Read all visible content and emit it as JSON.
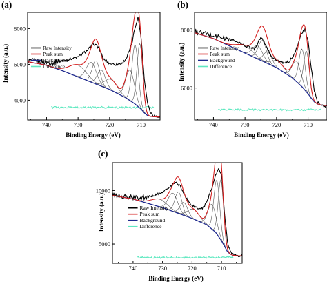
{
  "chart_data": [
    {
      "panel": "(a)",
      "type": "line",
      "xlabel": "Binding Energy (eV)",
      "ylabel": "Intensity (a.u.)",
      "xlim": [
        746,
        704
      ],
      "ylim": [
        2900,
        8900
      ],
      "x_reversed": true,
      "xticks": [
        740,
        730,
        720,
        710
      ],
      "yticks": [
        4000,
        6000,
        8000
      ],
      "legend_position": "left",
      "legend": [
        {
          "name": "Raw Intensity",
          "color": "#000000"
        },
        {
          "name": "Peak sum",
          "color": "#d42020"
        },
        {
          "name": "Background",
          "color": "#1f2a8f"
        },
        {
          "name": "Difference",
          "color": "#5fe8c0"
        }
      ],
      "raw_x": [
        746,
        742,
        738,
        734,
        730,
        727,
        725,
        723.5,
        722,
        720,
        718,
        716,
        714.5,
        713,
        712,
        711,
        710,
        709,
        708,
        707,
        706,
        705,
        704
      ],
      "raw_y": [
        6200,
        6150,
        6100,
        6250,
        6400,
        6800,
        7150,
        6950,
        6300,
        6050,
        6000,
        6050,
        6400,
        7100,
        8000,
        8650,
        7500,
        5200,
        3900,
        3300,
        3150,
        3100,
        3100
      ],
      "background_x": [
        746,
        740,
        735,
        730,
        725,
        720,
        715,
        712,
        710,
        709,
        708,
        707,
        706,
        705,
        704
      ],
      "background_y": [
        6150,
        5950,
        5650,
        5300,
        4950,
        4600,
        4150,
        3800,
        3500,
        3300,
        3150,
        3100,
        3080,
        3070,
        3060
      ],
      "components": [
        {
          "center": 730,
          "height": 650,
          "width": 2.8
        },
        {
          "center": 725.8,
          "height": 1100,
          "width": 1.6
        },
        {
          "center": 724.3,
          "height": 1300,
          "width": 1.2
        },
        {
          "center": 722.6,
          "height": 900,
          "width": 1.3
        },
        {
          "center": 719.5,
          "height": 600,
          "width": 2.0
        },
        {
          "center": 713.5,
          "height": 1700,
          "width": 1.4
        },
        {
          "center": 711.9,
          "height": 3300,
          "width": 1.0
        },
        {
          "center": 710.4,
          "height": 3600,
          "width": 0.9
        }
      ],
      "difference_level": 3600
    },
    {
      "panel": "(b)",
      "type": "line",
      "xlabel": "Binding Energy (eV)",
      "ylabel": "Intensity (a.u.)",
      "xlim": [
        746,
        704
      ],
      "ylim": [
        4900,
        8600
      ],
      "x_reversed": true,
      "xticks": [
        740,
        730,
        720,
        710
      ],
      "yticks": [
        6000,
        8000
      ],
      "legend_position": "left",
      "legend": [
        {
          "name": "Raw Intensity",
          "color": "#000000"
        },
        {
          "name": "Peak sum",
          "color": "#d42020"
        },
        {
          "name": "Background",
          "color": "#1f2a8f"
        },
        {
          "name": "Difference",
          "color": "#5fe8c0"
        }
      ],
      "raw_x": [
        746,
        742,
        738,
        734,
        730,
        727,
        725,
        723.5,
        722,
        720,
        718,
        716,
        714.5,
        713,
        712,
        711,
        710,
        709,
        708,
        707,
        706,
        705,
        704
      ],
      "raw_y": [
        7950,
        7850,
        7750,
        7650,
        7450,
        7350,
        7750,
        7500,
        7150,
        6950,
        6850,
        6900,
        7150,
        7550,
        7900,
        8000,
        7600,
        6700,
        5900,
        5500,
        5400,
        5380,
        5380
      ],
      "background_x": [
        746,
        740,
        735,
        730,
        725,
        720,
        715,
        712,
        710,
        709,
        708,
        707,
        706,
        705,
        704
      ],
      "background_y": [
        7900,
        7700,
        7450,
        7200,
        6950,
        6700,
        6350,
        6050,
        5800,
        5650,
        5520,
        5450,
        5420,
        5400,
        5390
      ],
      "components": [
        {
          "center": 730,
          "height": 250,
          "width": 2.8
        },
        {
          "center": 726,
          "height": 450,
          "width": 1.6
        },
        {
          "center": 724.5,
          "height": 700,
          "width": 1.3
        },
        {
          "center": 722.8,
          "height": 400,
          "width": 1.3
        },
        {
          "center": 719.5,
          "height": 250,
          "width": 2.0
        },
        {
          "center": 713.6,
          "height": 700,
          "width": 1.4
        },
        {
          "center": 711.9,
          "height": 1300,
          "width": 1.0
        },
        {
          "center": 710.5,
          "height": 1400,
          "width": 0.9
        }
      ],
      "difference_level": 5250
    },
    {
      "panel": "(c)",
      "type": "line",
      "xlabel": "Binding Energy (eV)",
      "ylabel": "Intensity (a.u.)",
      "xlim": [
        747,
        703
      ],
      "ylim": [
        3200,
        12600
      ],
      "x_reversed": true,
      "xticks": [
        740,
        730,
        720,
        710
      ],
      "yticks": [
        5000,
        10000
      ],
      "legend_position": "right",
      "legend": [
        {
          "name": "Raw Intensity",
          "color": "#000000"
        },
        {
          "name": "Peak sum",
          "color": "#d42020"
        },
        {
          "name": "Background",
          "color": "#1f2a8f"
        },
        {
          "name": "Difference",
          "color": "#5fe8c0"
        }
      ],
      "raw_x": [
        747,
        743,
        739,
        735,
        731,
        728,
        725.5,
        724,
        722,
        720,
        718,
        716,
        714.5,
        713,
        712,
        711,
        710,
        709,
        708,
        707,
        706,
        705,
        704,
        703
      ],
      "raw_y": [
        9600,
        9400,
        9300,
        9400,
        9700,
        10200,
        10800,
        10400,
        9300,
        8600,
        8300,
        8400,
        9300,
        10500,
        11400,
        12000,
        11500,
        8000,
        5200,
        4300,
        4000,
        3900,
        3900,
        3900
      ],
      "background_x": [
        747,
        740,
        735,
        730,
        725,
        720,
        715,
        712,
        710,
        709,
        708,
        707,
        706,
        705,
        704,
        703
      ],
      "background_y": [
        9550,
        9200,
        8800,
        8400,
        7900,
        7400,
        6800,
        6100,
        5300,
        4800,
        4300,
        4050,
        3950,
        3920,
        3900,
        3900
      ],
      "components": [
        {
          "center": 731,
          "height": 700,
          "width": 2.8
        },
        {
          "center": 726.5,
          "height": 1700,
          "width": 1.6
        },
        {
          "center": 724.6,
          "height": 2000,
          "width": 1.2
        },
        {
          "center": 722.8,
          "height": 1200,
          "width": 1.3
        },
        {
          "center": 719.5,
          "height": 900,
          "width": 2.0
        },
        {
          "center": 713.2,
          "height": 2300,
          "width": 1.4
        },
        {
          "center": 711.6,
          "height": 5000,
          "width": 1.0
        },
        {
          "center": 710.2,
          "height": 5600,
          "width": 0.9
        }
      ],
      "difference_level": 3750
    }
  ]
}
